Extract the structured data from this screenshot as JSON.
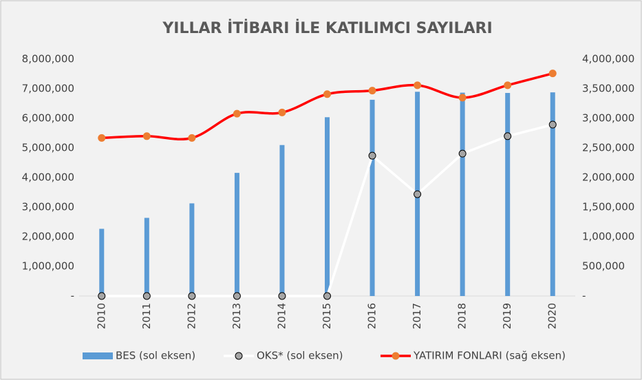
{
  "chart_data": {
    "type": "combo",
    "title": "YILLAR İTİBARI İLE KATILIMCI SAYILARI",
    "categories": [
      "2010",
      "2011",
      "2012",
      "2013",
      "2014",
      "2015",
      "2016",
      "2017",
      "2018",
      "2019",
      "2020"
    ],
    "series": [
      {
        "name": "BES (sol eksen)",
        "kind": "bar",
        "axis": "y",
        "color": "#5b9bd5",
        "values": [
          2270000,
          2640000,
          3130000,
          4160000,
          5100000,
          6040000,
          6630000,
          6900000,
          6870000,
          6860000,
          6880000
        ]
      },
      {
        "name": "OKS* (sol eksen)",
        "kind": "line",
        "axis": "y",
        "color": "#ffffff",
        "marker_color": "#a5a5a5",
        "values": [
          0,
          0,
          0,
          0,
          0,
          0,
          4740000,
          3440000,
          4810000,
          5400000,
          5790000
        ]
      },
      {
        "name": "YATIRIM FONLARI (sağ eksen)",
        "kind": "line",
        "axis": "y2",
        "color": "#ff0000",
        "marker_color": "#ed7d31",
        "values": [
          2670000,
          2700000,
          2670000,
          3080000,
          3100000,
          3410000,
          3470000,
          3560000,
          3350000,
          3560000,
          3760000
        ]
      }
    ],
    "ylim": [
      0,
      8000000
    ],
    "yticks": [
      {
        "value": 0,
        "label": "-"
      },
      {
        "value": 1000000,
        "label": "1,000,000"
      },
      {
        "value": 2000000,
        "label": "2,000,000"
      },
      {
        "value": 3000000,
        "label": "3,000,000"
      },
      {
        "value": 4000000,
        "label": "4,000,000"
      },
      {
        "value": 5000000,
        "label": "5,000,000"
      },
      {
        "value": 6000000,
        "label": "6,000,000"
      },
      {
        "value": 7000000,
        "label": "7,000,000"
      },
      {
        "value": 8000000,
        "label": "8,000,000"
      }
    ],
    "y2lim": [
      0,
      4000000
    ],
    "y2ticks": [
      {
        "value": 0,
        "label": "-"
      },
      {
        "value": 500000,
        "label": "500,000"
      },
      {
        "value": 1000000,
        "label": "1,000,000"
      },
      {
        "value": 1500000,
        "label": "1,500,000"
      },
      {
        "value": 2000000,
        "label": "2,000,000"
      },
      {
        "value": 2500000,
        "label": "2,500,000"
      },
      {
        "value": 3000000,
        "label": "3,000,000"
      },
      {
        "value": 3500000,
        "label": "3,500,000"
      },
      {
        "value": 4000000,
        "label": "4,000,000"
      }
    ],
    "legend": "bottom"
  }
}
